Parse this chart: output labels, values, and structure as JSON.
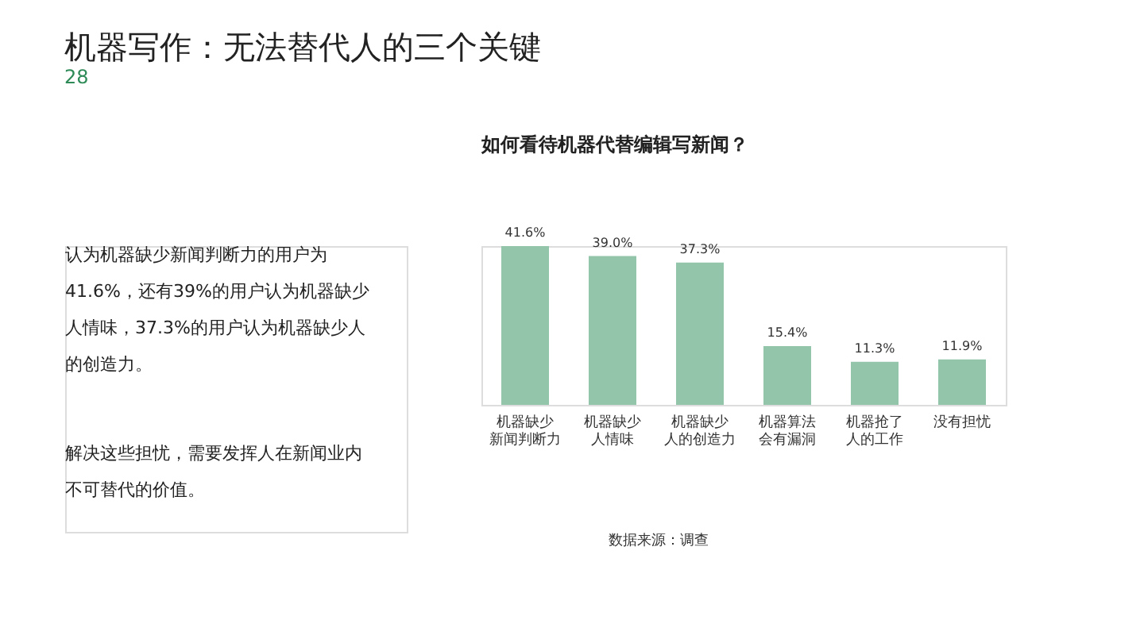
{
  "chart_data": {
    "type": "bar",
    "title": "机器写作：无法替代人的三个关键",
    "subtitle": "如何看待机器代替编辑写新闻？",
    "categories": [
      "机器缺少新闻判断力",
      "机器缺少人情味",
      "机器缺少人的创造力",
      "机器算法会有漏洞",
      "机器抢了人的工作",
      "没有担忧"
    ],
    "values": [
      41.6,
      39.0,
      37.3,
      15.4,
      11.3,
      11.9
    ],
    "value_labels": [
      "41.6%",
      "39.0%",
      "37.3%",
      "15.4%",
      "11.3%",
      "11.9%"
    ],
    "color": "#93c5ab",
    "annotations": [
      "28",
      "认为机器缺少新闻判断力的用户为41.6%，还有39%的用户认为机器缺少人情味，37.3%的用户认为机器缺少人的创造力。",
      "解决这些担忧，需要发挥人在新闻业内不可替代的价值。",
      "数据来源：调查"
    ],
    "grid": false
  }
}
